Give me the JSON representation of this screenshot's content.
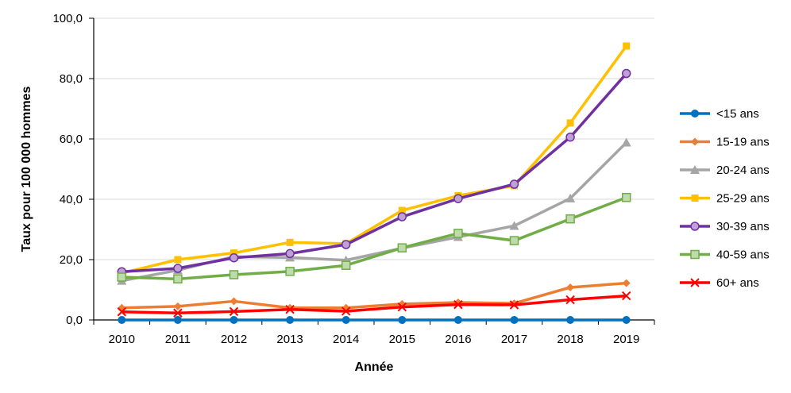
{
  "chart_data": {
    "type": "line",
    "xlabel": "Année",
    "ylabel": "Taux pour 100 000 hommes",
    "ylim": [
      0,
      100
    ],
    "yticks": [
      "0,0",
      "20,0",
      "40,0",
      "60,0",
      "80,0",
      "100,0"
    ],
    "grid": "horizontal",
    "legend_position": "right",
    "x": [
      "2010",
      "2011",
      "2012",
      "2013",
      "2014",
      "2015",
      "2016",
      "2017",
      "2018",
      "2019"
    ],
    "series": [
      {
        "name": "<15 ans",
        "color": "#0070C0",
        "marker": "circle",
        "values": [
          0,
          0,
          0,
          0,
          0,
          0,
          0,
          0,
          0,
          0
        ]
      },
      {
        "name": "15-19 ans",
        "color": "#ED7D31",
        "marker": "diamond",
        "values": [
          4.0,
          4.5,
          6.2,
          4.0,
          4.0,
          5.3,
          5.8,
          5.5,
          10.8,
          12.2
        ]
      },
      {
        "name": "20-24 ans",
        "color": "#A5A5A5",
        "marker": "triangle",
        "values": [
          13.0,
          16.5,
          21.0,
          20.7,
          19.8,
          23.8,
          27.5,
          31.2,
          40.3,
          58.8
        ]
      },
      {
        "name": "25-29 ans",
        "color": "#FFC000",
        "marker": "square",
        "values": [
          15.5,
          20.0,
          22.2,
          25.7,
          25.3,
          36.3,
          41.2,
          44.5,
          65.3,
          90.8
        ]
      },
      {
        "name": "30-39 ans",
        "color": "#7030A0",
        "marker": "circle-light",
        "values": [
          16.0,
          17.1,
          20.6,
          22.0,
          25.0,
          34.2,
          40.2,
          45.0,
          60.6,
          81.7
        ]
      },
      {
        "name": "40-59 ans",
        "color": "#70AD47",
        "marker": "square-light",
        "values": [
          14.2,
          13.6,
          15.0,
          16.1,
          18.1,
          23.9,
          28.7,
          26.3,
          33.5,
          40.6
        ]
      },
      {
        "name": "60+ ans",
        "color": "#FF0000",
        "marker": "x",
        "values": [
          2.7,
          2.3,
          2.8,
          3.5,
          2.9,
          4.3,
          5.1,
          5.0,
          6.7,
          8.0
        ]
      }
    ]
  }
}
